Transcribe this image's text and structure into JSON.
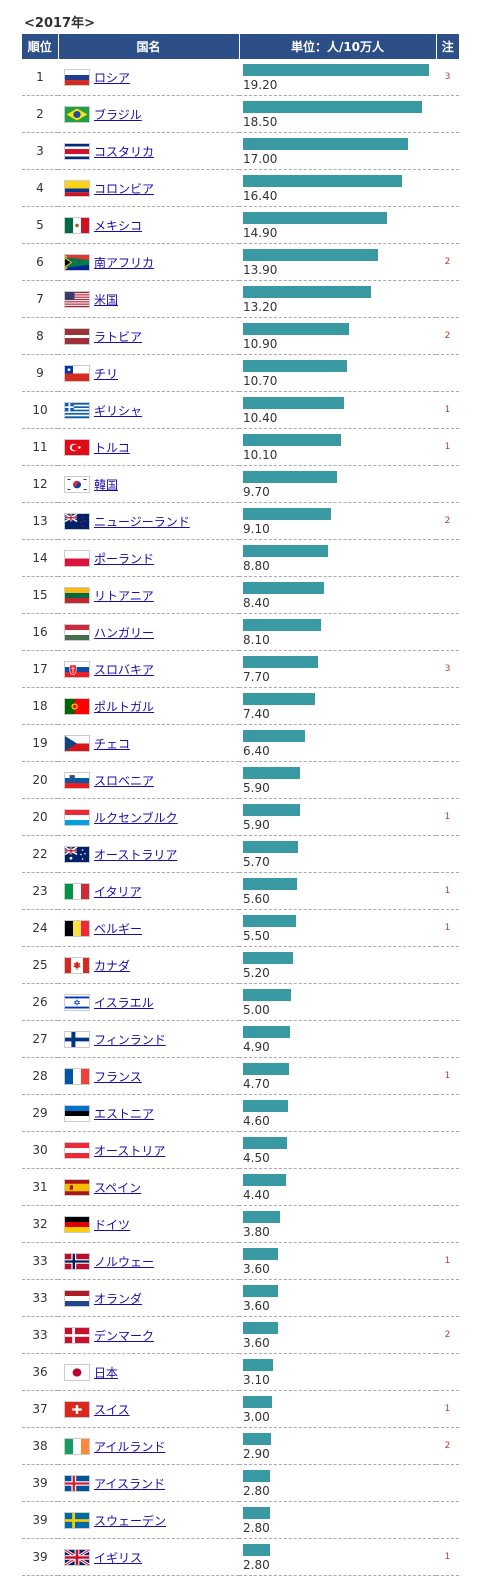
{
  "caption": "<2017年>",
  "headers": {
    "rank": "順位",
    "country": "国名",
    "unit": "単位：人/10万人",
    "note": "注"
  },
  "colors": {
    "header_bg": "#2d4f87",
    "bar": "#3a9aa3",
    "note": "#c0392b",
    "link": "#1a0dab"
  },
  "chart_data": {
    "type": "bar",
    "orientation": "horizontal",
    "xlim": [
      0,
      19.2
    ],
    "grid": false,
    "rows": [
      {
        "rank": "1",
        "country": "ロシア",
        "flag": "flag-russia-icon",
        "value": "19.20",
        "note": "3"
      },
      {
        "rank": "2",
        "country": "ブラジル",
        "flag": "flag-brazil-icon",
        "value": "18.50",
        "note": ""
      },
      {
        "rank": "3",
        "country": "コスタリカ",
        "flag": "flag-costa-rica-icon",
        "value": "17.00",
        "note": ""
      },
      {
        "rank": "4",
        "country": "コロンビア",
        "flag": "flag-colombia-icon",
        "value": "16.40",
        "note": ""
      },
      {
        "rank": "5",
        "country": "メキシコ",
        "flag": "flag-mexico-icon",
        "value": "14.90",
        "note": ""
      },
      {
        "rank": "6",
        "country": "南アフリカ",
        "flag": "flag-south-africa-icon",
        "value": "13.90",
        "note": "2"
      },
      {
        "rank": "7",
        "country": "米国",
        "flag": "flag-usa-icon",
        "value": "13.20",
        "note": ""
      },
      {
        "rank": "8",
        "country": "ラトビア",
        "flag": "flag-latvia-icon",
        "value": "10.90",
        "note": "2"
      },
      {
        "rank": "9",
        "country": "チリ",
        "flag": "flag-chile-icon",
        "value": "10.70",
        "note": ""
      },
      {
        "rank": "10",
        "country": "ギリシャ",
        "flag": "flag-greece-icon",
        "value": "10.40",
        "note": "1"
      },
      {
        "rank": "11",
        "country": "トルコ",
        "flag": "flag-turkey-icon",
        "value": "10.10",
        "note": "1"
      },
      {
        "rank": "12",
        "country": "韓国",
        "flag": "flag-korea-icon",
        "value": "9.70",
        "note": ""
      },
      {
        "rank": "13",
        "country": "ニュージーランド",
        "flag": "flag-new-zealand-icon",
        "value": "9.10",
        "note": "2"
      },
      {
        "rank": "14",
        "country": "ポーランド",
        "flag": "flag-poland-icon",
        "value": "8.80",
        "note": ""
      },
      {
        "rank": "15",
        "country": "リトアニア",
        "flag": "flag-lithuania-icon",
        "value": "8.40",
        "note": ""
      },
      {
        "rank": "16",
        "country": "ハンガリー",
        "flag": "flag-hungary-icon",
        "value": "8.10",
        "note": ""
      },
      {
        "rank": "17",
        "country": "スロバキア",
        "flag": "flag-slovakia-icon",
        "value": "7.70",
        "note": "3"
      },
      {
        "rank": "18",
        "country": "ポルトガル",
        "flag": "flag-portugal-icon",
        "value": "7.40",
        "note": ""
      },
      {
        "rank": "19",
        "country": "チェコ",
        "flag": "flag-czech-icon",
        "value": "6.40",
        "note": ""
      },
      {
        "rank": "20",
        "country": "スロベニア",
        "flag": "flag-slovenia-icon",
        "value": "5.90",
        "note": ""
      },
      {
        "rank": "20",
        "country": "ルクセンブルク",
        "flag": "flag-luxembourg-icon",
        "value": "5.90",
        "note": "1"
      },
      {
        "rank": "22",
        "country": "オーストラリア",
        "flag": "flag-australia-icon",
        "value": "5.70",
        "note": ""
      },
      {
        "rank": "23",
        "country": "イタリア",
        "flag": "flag-italy-icon",
        "value": "5.60",
        "note": "1"
      },
      {
        "rank": "24",
        "country": "ベルギー",
        "flag": "flag-belgium-icon",
        "value": "5.50",
        "note": "1"
      },
      {
        "rank": "25",
        "country": "カナダ",
        "flag": "flag-canada-icon",
        "value": "5.20",
        "note": ""
      },
      {
        "rank": "26",
        "country": "イスラエル",
        "flag": "flag-israel-icon",
        "value": "5.00",
        "note": ""
      },
      {
        "rank": "27",
        "country": "フィンランド",
        "flag": "flag-finland-icon",
        "value": "4.90",
        "note": ""
      },
      {
        "rank": "28",
        "country": "フランス",
        "flag": "flag-france-icon",
        "value": "4.70",
        "note": "1"
      },
      {
        "rank": "29",
        "country": "エストニア",
        "flag": "flag-estonia-icon",
        "value": "4.60",
        "note": ""
      },
      {
        "rank": "30",
        "country": "オーストリア",
        "flag": "flag-austria-icon",
        "value": "4.50",
        "note": ""
      },
      {
        "rank": "31",
        "country": "スペイン",
        "flag": "flag-spain-icon",
        "value": "4.40",
        "note": ""
      },
      {
        "rank": "32",
        "country": "ドイツ",
        "flag": "flag-germany-icon",
        "value": "3.80",
        "note": ""
      },
      {
        "rank": "33",
        "country": "ノルウェー",
        "flag": "flag-norway-icon",
        "value": "3.60",
        "note": "1"
      },
      {
        "rank": "33",
        "country": "オランダ",
        "flag": "flag-netherlands-icon",
        "value": "3.60",
        "note": ""
      },
      {
        "rank": "33",
        "country": "デンマーク",
        "flag": "flag-denmark-icon",
        "value": "3.60",
        "note": "2"
      },
      {
        "rank": "36",
        "country": "日本",
        "flag": "flag-japan-icon",
        "value": "3.10",
        "note": ""
      },
      {
        "rank": "37",
        "country": "スイス",
        "flag": "flag-switzerland-icon",
        "value": "3.00",
        "note": "1"
      },
      {
        "rank": "38",
        "country": "アイルランド",
        "flag": "flag-ireland-icon",
        "value": "2.90",
        "note": "2"
      },
      {
        "rank": "39",
        "country": "アイスランド",
        "flag": "flag-iceland-icon",
        "value": "2.80",
        "note": ""
      },
      {
        "rank": "39",
        "country": "スウェーデン",
        "flag": "flag-sweden-icon",
        "value": "2.80",
        "note": ""
      },
      {
        "rank": "39",
        "country": "イギリス",
        "flag": "flag-uk-icon",
        "value": "2.80",
        "note": "1"
      }
    ]
  }
}
